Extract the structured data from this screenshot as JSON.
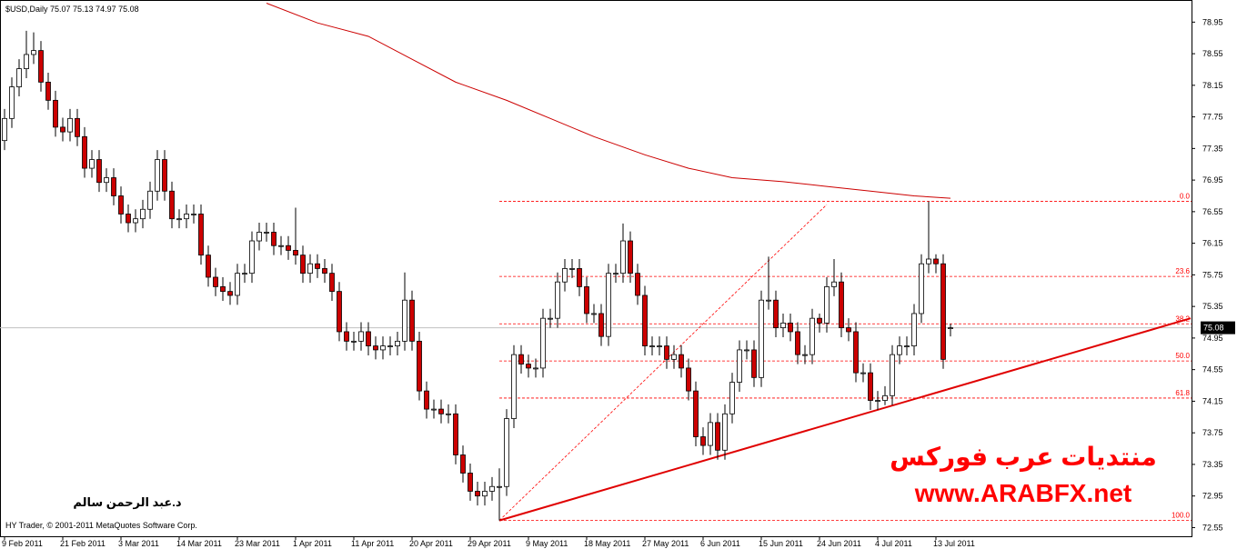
{
  "chart_data": {
    "type": "candlestick",
    "title": "$USD,Daily  75.07 75.13 74.97 75.08",
    "copyright": "HY Trader, © 2001-2011 MetaQuotes Software Corp.",
    "author": "د.عبد الرحمن سالم",
    "brand_ar": "منتديات عرب فوركس",
    "brand_url": "www.ARABFX.net",
    "bull_color": "#ffffff",
    "bear_color": "#cc0000",
    "ylim": [
      72.44,
      79.23
    ],
    "yticks": [
      72.55,
      72.95,
      73.35,
      73.75,
      74.15,
      74.55,
      74.95,
      75.35,
      75.75,
      76.15,
      76.55,
      76.95,
      77.35,
      77.75,
      78.15,
      78.55,
      78.95
    ],
    "last_price": 75.08,
    "x_labels": [
      {
        "index": 0,
        "label": "9 Feb 2011"
      },
      {
        "index": 8,
        "label": "21 Feb 2011"
      },
      {
        "index": 16,
        "label": "3 Mar 2011"
      },
      {
        "index": 24,
        "label": "14 Mar 2011"
      },
      {
        "index": 32,
        "label": "23 Mar 2011"
      },
      {
        "index": 40,
        "label": "1 Apr 2011"
      },
      {
        "index": 48,
        "label": "11 Apr 2011"
      },
      {
        "index": 56,
        "label": "20 Apr 2011"
      },
      {
        "index": 64,
        "label": "29 Apr 2011"
      },
      {
        "index": 72,
        "label": "9 May 2011"
      },
      {
        "index": 80,
        "label": "18 May 2011"
      },
      {
        "index": 88,
        "label": "27 May 2011"
      },
      {
        "index": 96,
        "label": "6 Jun 2011"
      },
      {
        "index": 104,
        "label": "15 Jun 2011"
      },
      {
        "index": 112,
        "label": "24 Jun 2011"
      },
      {
        "index": 120,
        "label": "4 Jul 2011"
      },
      {
        "index": 128,
        "label": "13 Jul 2011"
      }
    ],
    "open": [
      77.45,
      77.73,
      78.13,
      78.36,
      78.54,
      78.59,
      78.19,
      77.96,
      77.62,
      77.56,
      77.73,
      77.5,
      77.1,
      77.21,
      76.92,
      76.98,
      76.75,
      76.52,
      76.41,
      76.46,
      76.58,
      76.81,
      77.21,
      76.81,
      76.46,
      76.46,
      76.52,
      76.52,
      76.0,
      75.72,
      75.6,
      75.54,
      75.49,
      75.77,
      75.77,
      76.18,
      76.29,
      76.29,
      76.12,
      76.12,
      76.06,
      76.0,
      75.77,
      75.89,
      75.83,
      75.77,
      75.54,
      75.03,
      74.91,
      74.91,
      75.03,
      74.85,
      74.8,
      74.85,
      74.85,
      74.91,
      75.43,
      74.91,
      74.28,
      74.05,
      74.05,
      73.99,
      73.99,
      73.47,
      73.24,
      73.01,
      72.95,
      73.01,
      73.07,
      73.07,
      73.93,
      74.74,
      74.62,
      74.57,
      74.57,
      75.2,
      75.2,
      75.66,
      75.83,
      75.83,
      75.6,
      75.26,
      75.26,
      74.97,
      75.77,
      75.77,
      76.18,
      75.77,
      75.49,
      74.85,
      74.85,
      74.85,
      74.68,
      74.74,
      74.57,
      74.28,
      73.7,
      73.59,
      73.88,
      73.53,
      73.99,
      74.39,
      74.8,
      74.8,
      74.45,
      75.43,
      75.43,
      75.08,
      75.14,
      75.03,
      74.74,
      74.74,
      75.2,
      75.14,
      75.6,
      75.66,
      75.08,
      75.03,
      74.51,
      74.51,
      74.16,
      74.16,
      74.22,
      74.74,
      74.85,
      74.85,
      75.26,
      75.89,
      75.95,
      75.89,
      75.07
    ],
    "high": [
      77.85,
      78.25,
      78.48,
      78.84,
      78.82,
      78.71,
      78.31,
      78.08,
      77.74,
      77.85,
      77.85,
      77.62,
      77.33,
      77.33,
      77.1,
      77.1,
      76.87,
      76.64,
      76.58,
      76.7,
      76.93,
      77.33,
      77.33,
      76.93,
      76.58,
      76.64,
      76.64,
      76.64,
      76.12,
      75.84,
      75.72,
      75.66,
      75.89,
      75.89,
      76.3,
      76.41,
      76.41,
      76.41,
      76.24,
      76.24,
      76.6,
      76.12,
      76.01,
      76.01,
      75.95,
      75.89,
      75.66,
      75.15,
      75.03,
      75.15,
      75.15,
      74.97,
      74.97,
      74.97,
      75.03,
      75.78,
      75.55,
      75.03,
      74.4,
      74.17,
      74.17,
      74.11,
      74.11,
      73.59,
      73.36,
      73.13,
      73.13,
      73.19,
      73.3,
      74.05,
      74.86,
      74.86,
      74.74,
      74.69,
      75.32,
      75.32,
      75.78,
      75.95,
      75.95,
      75.95,
      75.72,
      75.38,
      75.38,
      75.89,
      75.89,
      76.4,
      76.3,
      75.89,
      75.61,
      74.97,
      74.97,
      74.97,
      74.86,
      74.86,
      74.69,
      74.4,
      73.82,
      74.0,
      74.0,
      74.11,
      74.51,
      74.92,
      74.92,
      74.92,
      75.55,
      75.98,
      75.55,
      75.26,
      75.26,
      75.15,
      74.86,
      75.32,
      75.26,
      75.72,
      75.95,
      75.78,
      75.2,
      75.15,
      74.63,
      74.63,
      74.28,
      74.34,
      74.86,
      74.97,
      74.97,
      75.38,
      76.01,
      76.68,
      76.01,
      76.01,
      75.13
    ],
    "low": [
      77.33,
      77.61,
      78.01,
      78.24,
      78.42,
      78.07,
      77.84,
      77.5,
      77.44,
      77.44,
      77.38,
      76.98,
      76.98,
      76.8,
      76.8,
      76.63,
      76.4,
      76.29,
      76.29,
      76.34,
      76.46,
      76.69,
      76.69,
      76.34,
      76.34,
      76.34,
      76.4,
      75.88,
      75.6,
      75.48,
      75.42,
      75.37,
      75.37,
      75.65,
      75.65,
      76.06,
      76.17,
      76.0,
      76.0,
      75.94,
      75.88,
      75.65,
      75.65,
      75.71,
      75.65,
      75.42,
      74.91,
      74.79,
      74.79,
      74.79,
      74.73,
      74.68,
      74.68,
      74.73,
      74.73,
      74.79,
      74.79,
      74.16,
      73.93,
      73.93,
      73.87,
      73.87,
      73.35,
      73.12,
      72.89,
      72.83,
      72.83,
      72.89,
      72.64,
      72.95,
      73.81,
      74.5,
      74.45,
      74.45,
      74.45,
      75.08,
      75.08,
      75.54,
      75.71,
      75.48,
      75.14,
      75.14,
      74.85,
      74.85,
      75.65,
      75.65,
      75.65,
      75.37,
      74.73,
      74.73,
      74.73,
      74.56,
      74.56,
      74.45,
      74.16,
      73.58,
      73.47,
      73.47,
      73.41,
      73.41,
      73.87,
      74.27,
      74.68,
      74.33,
      74.33,
      75.31,
      74.96,
      74.96,
      74.91,
      74.62,
      74.62,
      74.62,
      75.02,
      75.02,
      75.48,
      74.96,
      74.91,
      74.39,
      74.39,
      74.04,
      74.04,
      74.1,
      74.1,
      74.62,
      74.73,
      74.73,
      75.14,
      75.77,
      75.77,
      74.56,
      74.97
    ],
    "close": [
      77.73,
      78.13,
      78.36,
      78.54,
      78.59,
      78.19,
      77.96,
      77.62,
      77.56,
      77.73,
      77.5,
      77.1,
      77.21,
      76.92,
      76.98,
      76.75,
      76.52,
      76.41,
      76.46,
      76.58,
      76.81,
      77.21,
      76.81,
      76.46,
      76.46,
      76.52,
      76.52,
      76.0,
      75.72,
      75.6,
      75.54,
      75.49,
      75.77,
      75.77,
      76.18,
      76.29,
      76.29,
      76.12,
      76.12,
      76.06,
      76.0,
      75.77,
      75.89,
      75.83,
      75.77,
      75.54,
      75.03,
      74.91,
      74.91,
      75.03,
      74.85,
      74.8,
      74.85,
      74.85,
      74.91,
      75.43,
      74.91,
      74.28,
      74.05,
      74.05,
      73.99,
      73.99,
      73.47,
      73.24,
      73.01,
      72.95,
      73.01,
      73.07,
      73.07,
      73.93,
      74.74,
      74.62,
      74.57,
      74.57,
      75.2,
      75.2,
      75.66,
      75.83,
      75.83,
      75.6,
      75.26,
      75.26,
      74.97,
      75.77,
      75.77,
      76.18,
      75.77,
      75.49,
      74.85,
      74.85,
      74.85,
      74.68,
      74.74,
      74.57,
      74.28,
      73.7,
      73.59,
      73.88,
      73.53,
      73.99,
      74.39,
      74.8,
      74.8,
      74.45,
      75.43,
      75.43,
      75.08,
      75.14,
      75.03,
      74.74,
      74.74,
      75.2,
      75.14,
      75.6,
      75.66,
      75.08,
      75.03,
      74.51,
      74.51,
      74.16,
      74.16,
      74.22,
      74.74,
      74.85,
      74.85,
      75.26,
      75.89,
      75.95,
      75.89,
      74.68,
      75.08
    ],
    "ma": {
      "color": "#cc0000",
      "index": [
        36,
        43,
        50,
        56,
        62,
        69,
        75,
        81,
        88,
        94,
        100,
        107,
        113,
        119,
        125,
        130
      ],
      "values": [
        79.19,
        78.94,
        78.77,
        78.48,
        78.19,
        77.96,
        77.73,
        77.5,
        77.27,
        77.1,
        76.98,
        76.93,
        76.87,
        76.81,
        76.75,
        76.72
      ]
    },
    "fib": {
      "color": "#ff0000",
      "start_index": 68,
      "levels": [
        {
          "label": "0.0",
          "price": 76.68
        },
        {
          "label": "23.6",
          "price": 75.73
        },
        {
          "label": "38.2",
          "price": 75.13
        },
        {
          "label": "50.0",
          "price": 74.66
        },
        {
          "label": "61.8",
          "price": 74.19
        },
        {
          "label": "100.0",
          "price": 72.64
        }
      ]
    },
    "fib_diagonal": {
      "color": "#ff0000",
      "from": [
        68,
        72.64
      ],
      "to": [
        113,
        76.64
      ]
    },
    "trendline": {
      "color": "#e00000",
      "from": [
        68,
        72.64
      ],
      "to": [
        163,
        75.2
      ]
    }
  }
}
